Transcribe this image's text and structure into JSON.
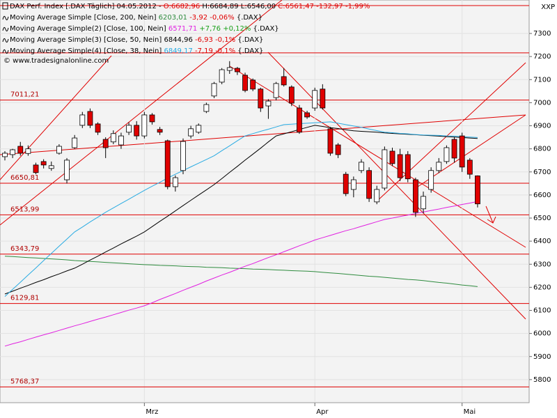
{
  "chart_data": {
    "type": "candlestick",
    "header": [
      {
        "text": "DAX Perf. Index [.DAX  Täglich] 04.05.2012 - ",
        "color": "#000000"
      },
      {
        "text": "O:6682,96 ",
        "color": "#e00000"
      },
      {
        "text": "H:6684,89 L:6546,00 ",
        "color": "#000000"
      },
      {
        "text": "C:6561,47 -132,97 -1,99%",
        "color": "#e00000"
      }
    ],
    "attribution": "© www.tradesignalonline.com",
    "axis_label": "XXP",
    "categories": [
      null,
      null,
      null,
      null,
      null,
      null,
      null,
      null,
      null,
      null,
      null,
      null,
      null,
      null,
      null,
      null,
      null,
      null,
      "Mrz",
      null,
      null,
      null,
      null,
      null,
      null,
      null,
      null,
      null,
      null,
      null,
      null,
      null,
      null,
      null,
      null,
      null,
      null,
      null,
      null,
      null,
      "Apr",
      null,
      null,
      null,
      null,
      null,
      null,
      null,
      null,
      null,
      null,
      null,
      null,
      null,
      null,
      null,
      null,
      null,
      null,
      "Mai",
      null,
      null
    ],
    "open": [
      6766,
      6775,
      6811,
      6780,
      6730,
      6745,
      6715,
      6781,
      6666,
      6805,
      6902,
      6962,
      6908,
      6841,
      6830,
      6817,
      6872,
      6902,
      6856,
      6947,
      6884,
      6835,
      6636,
      6706,
      6856,
      6872,
      6962,
      7029,
      7089,
      7140,
      7149,
      7119,
      7098,
      7059,
      6986,
      7022,
      7113,
      7068,
      6977,
      6956,
      6977,
      7059,
      6887,
      6817,
      6690,
      6624,
      6706,
      6706,
      6570,
      6630,
      6790,
      6775,
      6775,
      6666,
      6540,
      6624,
      6706,
      6745,
      6841,
      6856,
      6751,
      6682.96
    ],
    "high": [
      6790,
      6800,
      6830,
      6815,
      6740,
      6755,
      6745,
      6820,
      6760,
      6860,
      6960,
      6975,
      6915,
      6850,
      6880,
      6870,
      6915,
      6920,
      6960,
      6955,
      6895,
      6840,
      6685,
      6845,
      6900,
      6910,
      7000,
      7090,
      7150,
      7180,
      7155,
      7130,
      7105,
      7065,
      7015,
      7090,
      7150,
      7075,
      6990,
      6965,
      7065,
      7080,
      6895,
      6825,
      6700,
      6680,
      6755,
      6720,
      6640,
      6810,
      6805,
      6800,
      6790,
      6675,
      6615,
      6720,
      6760,
      6815,
      6850,
      6870,
      6760,
      6684.89
    ],
    "low": [
      6750,
      6760,
      6770,
      6770,
      6690,
      6715,
      6705,
      6775,
      6650,
      6800,
      6890,
      6890,
      6860,
      6760,
      6820,
      6800,
      6860,
      6840,
      6845,
      6905,
      6860,
      6625,
      6615,
      6690,
      6845,
      6865,
      6955,
      7020,
      7080,
      7125,
      7120,
      7045,
      7050,
      6960,
      6930,
      7010,
      7070,
      6985,
      6865,
      6930,
      6965,
      6970,
      6770,
      6760,
      6595,
      6590,
      6695,
      6570,
      6560,
      6620,
      6725,
      6660,
      6655,
      6505,
      6520,
      6610,
      6695,
      6735,
      6740,
      6700,
      6670,
      6546
    ],
    "close": [
      6781,
      6796,
      6781,
      6800,
      6697,
      6730,
      6727,
      6811,
      6751,
      6847,
      6947,
      6902,
      6872,
      6805,
      6866,
      6856,
      6902,
      6856,
      6947,
      6917,
      6872,
      6636,
      6675,
      6832,
      6887,
      6902,
      6992,
      7083,
      7143,
      7152,
      7134,
      7053,
      7059,
      6977,
      7007,
      7083,
      7077,
      6998,
      6872,
      6938,
      7053,
      6977,
      6781,
      6775,
      6606,
      6666,
      6742,
      6585,
      6624,
      6796,
      6736,
      6675,
      6670,
      6525,
      6594,
      6706,
      6742,
      6805,
      6760,
      6721,
      6690,
      6561.47
    ],
    "up_color": "#ffffff",
    "down_color": "#e00000",
    "series": [
      {
        "name": "Moving Average Simple [Close, 200, Nein]",
        "color": "#2e8b3e",
        "last_label": "6203,01",
        "change": "-3,92 -0,06%",
        "change_color": "#e00000",
        "suffix": "{.DAX}",
        "values": [
          6335,
          6333,
          6331,
          6329,
          6327,
          6325,
          6323,
          6321,
          6319,
          6316,
          6314,
          6312,
          6310,
          6308,
          6306,
          6304,
          6302,
          6300,
          6298,
          6297,
          6295,
          6294,
          6293,
          6291,
          6290,
          6289,
          6287,
          6286,
          6285,
          6283,
          6282,
          6281,
          6279,
          6278,
          6277,
          6275,
          6274,
          6272,
          6271,
          6270,
          6268,
          6265,
          6262,
          6260,
          6257,
          6254,
          6251,
          6248,
          6246,
          6243,
          6240,
          6237,
          6234,
          6232,
          6229,
          6225,
          6221,
          6218,
          6214,
          6210,
          6207,
          6203.01
        ]
      },
      {
        "name": "Moving Average Simple(2) [Close, 100, Nein]",
        "color": "#e020e0",
        "last_label": "6571,71",
        "change": "+7,76 +0,12%",
        "change_color": "#1aa01a",
        "suffix": "{.DAX}",
        "values": [
          5945,
          5955,
          5964,
          5974,
          5984,
          5994,
          6003,
          6013,
          6023,
          6033,
          6042,
          6052,
          6062,
          6071,
          6081,
          6091,
          6101,
          6110,
          6120,
          6133,
          6147,
          6160,
          6173,
          6187,
          6200,
          6213,
          6227,
          6240,
          6253,
          6265,
          6278,
          6291,
          6303,
          6316,
          6329,
          6341,
          6354,
          6367,
          6380,
          6392,
          6405,
          6415,
          6425,
          6435,
          6445,
          6454,
          6464,
          6474,
          6484,
          6494,
          6500,
          6507,
          6513,
          6520,
          6526,
          6533,
          6539,
          6546,
          6552,
          6559,
          6565,
          6571.71
        ]
      },
      {
        "name": "Moving Average Simple(3) [Close, 50, Nein]",
        "color": "#000000",
        "last_label": "6844,96",
        "change": "-6,93 -0,1%",
        "change_color": "#e00000",
        "suffix": "{.DAX}",
        "values": [
          6171,
          6183,
          6196,
          6208,
          6221,
          6233,
          6246,
          6258,
          6271,
          6283,
          6300,
          6318,
          6335,
          6353,
          6370,
          6388,
          6405,
          6422,
          6440,
          6463,
          6486,
          6508,
          6531,
          6554,
          6577,
          6600,
          6622,
          6645,
          6671,
          6698,
          6724,
          6751,
          6777,
          6803,
          6830,
          6856,
          6865,
          6874,
          6884,
          6893,
          6902,
          6897,
          6892,
          6888,
          6883,
          6878,
          6876,
          6874,
          6872,
          6869,
          6867,
          6865,
          6863,
          6861,
          6859,
          6857,
          6855,
          6853,
          6851,
          6849,
          6847,
          6844.96
        ]
      },
      {
        "name": "Moving Average Simple(4) [Close, 38, Nein]",
        "color": "#29abe2",
        "last_label": "6849,17",
        "change": "-7,19 -0,1%",
        "change_color": "#e00000",
        "suffix": "{.DAX}",
        "values": [
          6160,
          6191,
          6222,
          6253,
          6284,
          6316,
          6347,
          6378,
          6409,
          6440,
          6461,
          6483,
          6504,
          6525,
          6544,
          6563,
          6582,
          6601,
          6620,
          6638,
          6655,
          6673,
          6690,
          6706,
          6722,
          6738,
          6754,
          6770,
          6792,
          6813,
          6835,
          6856,
          6866,
          6876,
          6885,
          6895,
          6905,
          6907,
          6909,
          6911,
          6913,
          6915,
          6917,
          6911,
          6905,
          6899,
          6893,
          6886,
          6879,
          6872,
          6870,
          6867,
          6865,
          6862,
          6860,
          6859,
          6858,
          6856,
          6855,
          6853,
          6851,
          6849.17
        ]
      }
    ],
    "levels": [
      7421,
      7216,
      7011.21,
      6650.81,
      6513.99,
      6343.79,
      6129.81,
      5768.37
    ],
    "level_labels": [
      null,
      null,
      "7011,21",
      "6650,81",
      "6513,99",
      "6343,79",
      "6129,81",
      "5768,37"
    ],
    "level_color": "#e00000",
    "ylim": [
      5700,
      7445
    ],
    "yticks": [
      5800,
      5900,
      6000,
      6100,
      6200,
      6300,
      6400,
      6500,
      6600,
      6700,
      6800,
      6900,
      7000,
      7100,
      7200,
      7300
    ],
    "grid": true
  }
}
